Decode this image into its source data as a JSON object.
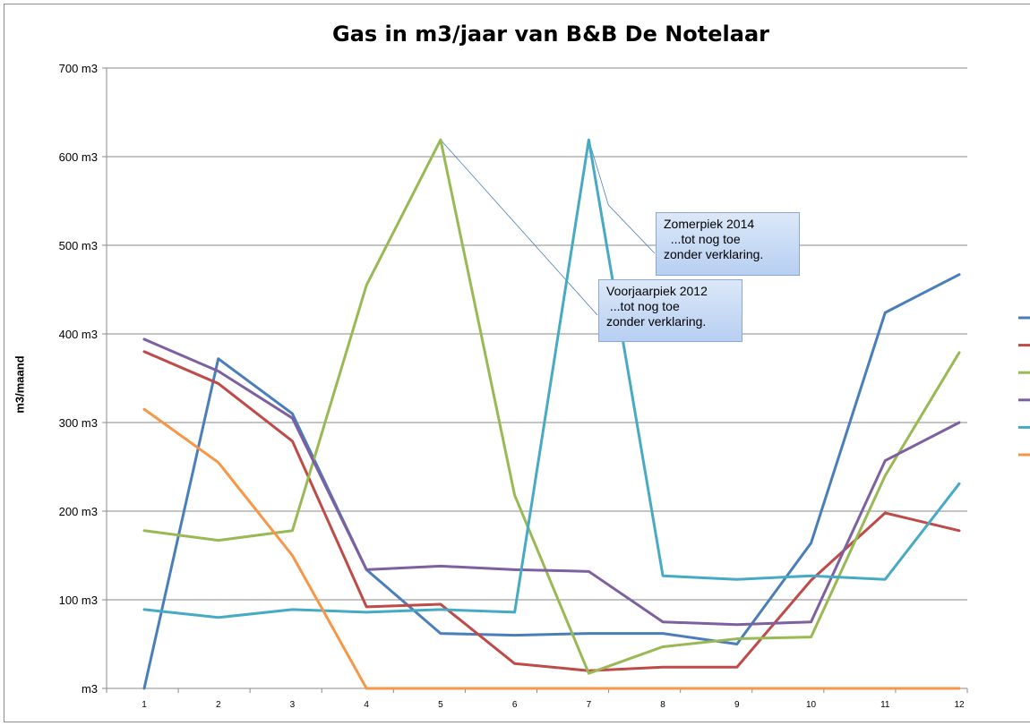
{
  "chart_data": {
    "type": "line",
    "title": "Gas in m3/jaar van B&B De Notelaar",
    "ylabel": "m3/maand",
    "xlabel": "",
    "x": [
      "1",
      "2",
      "3",
      "4",
      "5",
      "6",
      "7",
      "8",
      "9",
      "10",
      "11",
      "12"
    ],
    "y_ticks": [
      "m3",
      "100 m3",
      "200 m3",
      "300 m3",
      "400 m3",
      "500 m3",
      "600 m3",
      "700 m3"
    ],
    "ylim": [
      0,
      700
    ],
    "grid": true,
    "legend": "right (cut off, markers only)",
    "series": [
      {
        "color": "#4a7ebb",
        "values": [
          0,
          372,
          310,
          134,
          62,
          60,
          62,
          62,
          50,
          164,
          424,
          467
        ]
      },
      {
        "color": "#be4b48",
        "values": [
          380,
          344,
          279,
          92,
          95,
          28,
          20,
          24,
          24,
          122,
          198,
          178
        ]
      },
      {
        "color": "#98b954",
        "values": [
          178,
          167,
          178,
          455,
          619,
          218,
          17,
          47,
          56,
          58,
          240,
          379
        ]
      },
      {
        "color": "#7d60a0",
        "values": [
          394,
          358,
          305,
          134,
          138,
          134,
          132,
          75,
          72,
          75,
          257,
          300
        ]
      },
      {
        "color": "#46aac5",
        "values": [
          89,
          80,
          89,
          86,
          89,
          86,
          619,
          127,
          123,
          127,
          123,
          231
        ]
      },
      {
        "color": "#f79646",
        "values": [
          315,
          255,
          150,
          0,
          0,
          0,
          0,
          0,
          0,
          0,
          0,
          0
        ]
      }
    ],
    "annotations": [
      {
        "lines": [
          "Zomerpiek 2014",
          "  ...tot nog toe",
          "zonder verklaring."
        ],
        "x": 7,
        "y": 619
      },
      {
        "lines": [
          "Voorjaarpiek 2012",
          " ...tot nog toe",
          "zonder verklaring."
        ],
        "x": 5,
        "y": 619
      }
    ]
  }
}
